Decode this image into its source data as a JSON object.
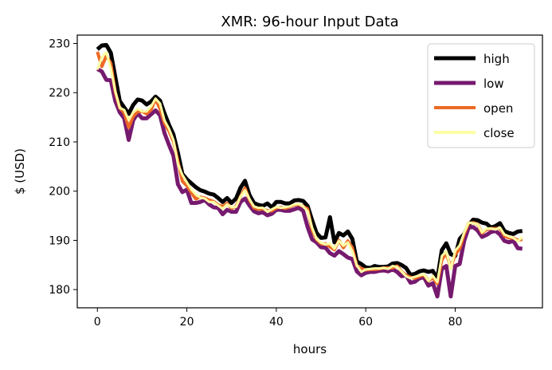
{
  "chart_data": {
    "type": "line",
    "title": "XMR: 96-hour Input Data",
    "xlabel": "hours",
    "ylabel": "$ (USD)",
    "xlim": [
      -4.5,
      99.5
    ],
    "ylim": [
      176.3,
      231.7
    ],
    "x_ticks": [
      0,
      20,
      40,
      60,
      80
    ],
    "y_ticks": [
      180,
      190,
      200,
      210,
      220,
      230
    ],
    "grid": false,
    "legend_position": "top-right",
    "series": [
      {
        "name": "high",
        "color": "#000000",
        "values": [
          228.8,
          229.6,
          229.7,
          228.1,
          223.2,
          218.3,
          217.0,
          215.7,
          217.5,
          218.6,
          218.4,
          217.6,
          218.2,
          219.2,
          218.4,
          215.8,
          213.5,
          211.5,
          207.8,
          203.5,
          202.4,
          201.6,
          200.8,
          200.2,
          199.9,
          199.5,
          199.3,
          198.6,
          197.8,
          198.6,
          197.6,
          198.5,
          200.7,
          202.1,
          199.2,
          197.6,
          197.2,
          197.0,
          197.5,
          196.7,
          197.8,
          197.8,
          197.5,
          197.5,
          198.1,
          198.2,
          198.0,
          197.0,
          194.1,
          191.5,
          190.5,
          190.6,
          194.7,
          189.6,
          191.5,
          191.0,
          191.8,
          190.3,
          185.7,
          185.2,
          184.5,
          184.4,
          184.8,
          184.6,
          184.6,
          184.7,
          185.3,
          185.4,
          185.0,
          184.4,
          183.0,
          183.2,
          183.7,
          183.9,
          183.6,
          183.8,
          182.2,
          188.0,
          189.4,
          187.2,
          186.8,
          190.3,
          191.3,
          193.1,
          194.2,
          194.1,
          193.6,
          193.4,
          192.6,
          192.9,
          193.5,
          191.9,
          191.5,
          191.3,
          191.8,
          191.9
        ]
      },
      {
        "name": "low",
        "color": "#761a6f",
        "values": [
          224.8,
          224.3,
          222.6,
          222.5,
          218.3,
          216.0,
          214.8,
          210.4,
          214.4,
          215.8,
          214.8,
          214.8,
          215.6,
          216.4,
          215.4,
          211.8,
          209.4,
          207.2,
          201.4,
          199.8,
          200.3,
          197.6,
          197.6,
          197.8,
          198.2,
          197.3,
          196.7,
          196.6,
          195.3,
          196.2,
          195.8,
          195.8,
          197.8,
          198.5,
          197.1,
          195.9,
          195.5,
          195.7,
          195.1,
          195.4,
          196.2,
          196.2,
          196.0,
          196.0,
          196.3,
          196.6,
          196.0,
          192.7,
          190.2,
          189.6,
          188.6,
          188.5,
          187.4,
          186.9,
          187.8,
          187.2,
          186.5,
          186.2,
          183.7,
          182.9,
          183.4,
          183.6,
          183.6,
          183.8,
          183.9,
          183.7,
          184.1,
          183.6,
          182.7,
          182.9,
          181.4,
          181.6,
          182.3,
          182.5,
          180.8,
          181.3,
          178.6,
          184.2,
          184.8,
          178.6,
          184.8,
          185.2,
          189.9,
          192.6,
          192.7,
          192.0,
          190.7,
          191.1,
          191.7,
          191.9,
          191.2,
          189.9,
          189.6,
          189.9,
          188.4,
          188.3
        ]
      },
      {
        "name": "open",
        "color": "#ed6925",
        "values": [
          228.3,
          225.3,
          227.5,
          226.0,
          220.1,
          216.9,
          215.9,
          212.9,
          215.2,
          216.1,
          216.2,
          215.7,
          216.5,
          218.7,
          216.7,
          213.8,
          212.2,
          210.1,
          206.1,
          202.0,
          201.1,
          199.7,
          198.4,
          198.8,
          198.6,
          198.2,
          197.9,
          197.2,
          196.9,
          197.5,
          196.5,
          196.9,
          198.9,
          200.6,
          198.2,
          196.6,
          196.3,
          196.4,
          196.0,
          196.0,
          196.6,
          196.7,
          196.5,
          196.8,
          197.2,
          197.3,
          196.9,
          196.4,
          192.1,
          190.2,
          189.3,
          189.3,
          188.7,
          188.1,
          190.0,
          188.5,
          189.9,
          188.5,
          184.8,
          184.3,
          184.0,
          184.1,
          184.1,
          184.2,
          184.4,
          184.4,
          184.4,
          184.8,
          183.7,
          182.9,
          182.5,
          182.3,
          182.7,
          183.0,
          181.8,
          182.4,
          181.2,
          186.0,
          187.4,
          184.5,
          187.1,
          188.3,
          191.3,
          193.5,
          193.6,
          193.3,
          191.5,
          192.2,
          192.4,
          192.4,
          192.4,
          190.9,
          190.5,
          190.5,
          190.0,
          190.2
        ]
      },
      {
        "name": "close",
        "color": "#fcffa4",
        "values": [
          224.7,
          227.2,
          228.2,
          224.9,
          220.3,
          216.9,
          216.5,
          214.4,
          216.0,
          216.7,
          216.2,
          216.2,
          217.2,
          218.8,
          217.8,
          214.4,
          212.7,
          210.4,
          205.5,
          203.3,
          201.8,
          200.3,
          199.3,
          198.7,
          198.5,
          197.8,
          197.8,
          197.1,
          196.4,
          197.3,
          196.7,
          196.8,
          198.9,
          200.2,
          198.4,
          196.9,
          196.6,
          196.6,
          195.8,
          196.3,
          196.8,
          196.6,
          196.7,
          196.9,
          197.3,
          197.4,
          196.9,
          195.9,
          192.6,
          190.3,
          189.5,
          189.2,
          189.3,
          188.3,
          189.9,
          188.9,
          189.6,
          187.8,
          184.9,
          183.6,
          184.1,
          184.2,
          184.3,
          184.3,
          184.4,
          184.2,
          184.8,
          184.6,
          183.7,
          182.7,
          182.3,
          182.6,
          182.9,
          183.1,
          181.8,
          182.8,
          181.5,
          186.8,
          187.8,
          184.2,
          187.9,
          189.0,
          191.6,
          193.6,
          193.5,
          193.3,
          191.6,
          192.4,
          192.4,
          192.2,
          192.6,
          191.2,
          190.8,
          190.5,
          189.8,
          190.7
        ]
      }
    ]
  }
}
